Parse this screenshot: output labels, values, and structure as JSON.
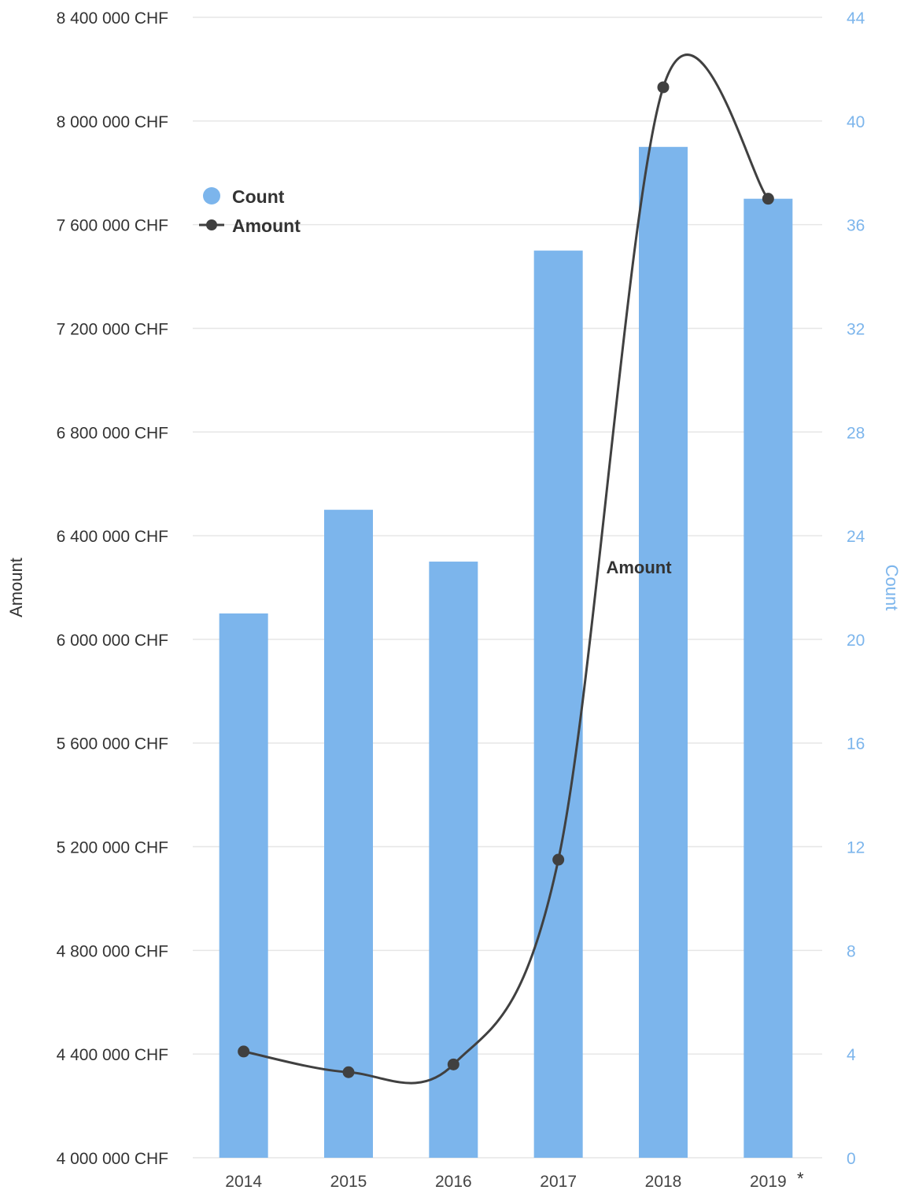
{
  "chart_data": {
    "type": "bar",
    "categories": [
      "2014",
      "2015",
      "2016",
      "2017",
      "2018",
      "2019"
    ],
    "category_note": "*",
    "series": [
      {
        "name": "Count",
        "type": "bar",
        "axis": "right",
        "color": "#7cb5ec",
        "values": [
          21,
          25,
          23,
          35,
          39,
          37
        ]
      },
      {
        "name": "Amount",
        "type": "line",
        "axis": "left",
        "color": "#404040",
        "values": [
          4410000,
          4330000,
          4360000,
          5150000,
          8130000,
          7700000
        ]
      }
    ],
    "y_left": {
      "label": "Amount",
      "range": [
        4000000,
        8400000
      ],
      "ticks": [
        "4 000 000 CHF",
        "4 400 000 CHF",
        "4 800 000 CHF",
        "5 200 000 CHF",
        "5 600 000 CHF",
        "6 000 000 CHF",
        "6 400 000 CHF",
        "6 800 000 CHF",
        "7 200 000 CHF",
        "7 600 000 CHF",
        "8 000 000 CHF",
        "8 400 000 CHF"
      ]
    },
    "y_right": {
      "label": "Count",
      "range": [
        0,
        44
      ],
      "ticks": [
        "0",
        "4",
        "8",
        "12",
        "16",
        "20",
        "24",
        "28",
        "32",
        "36",
        "40",
        "44"
      ]
    },
    "series_label": "Amount",
    "legend": {
      "position": "top-left",
      "items": [
        "Count",
        "Amount"
      ]
    },
    "grid": true
  }
}
